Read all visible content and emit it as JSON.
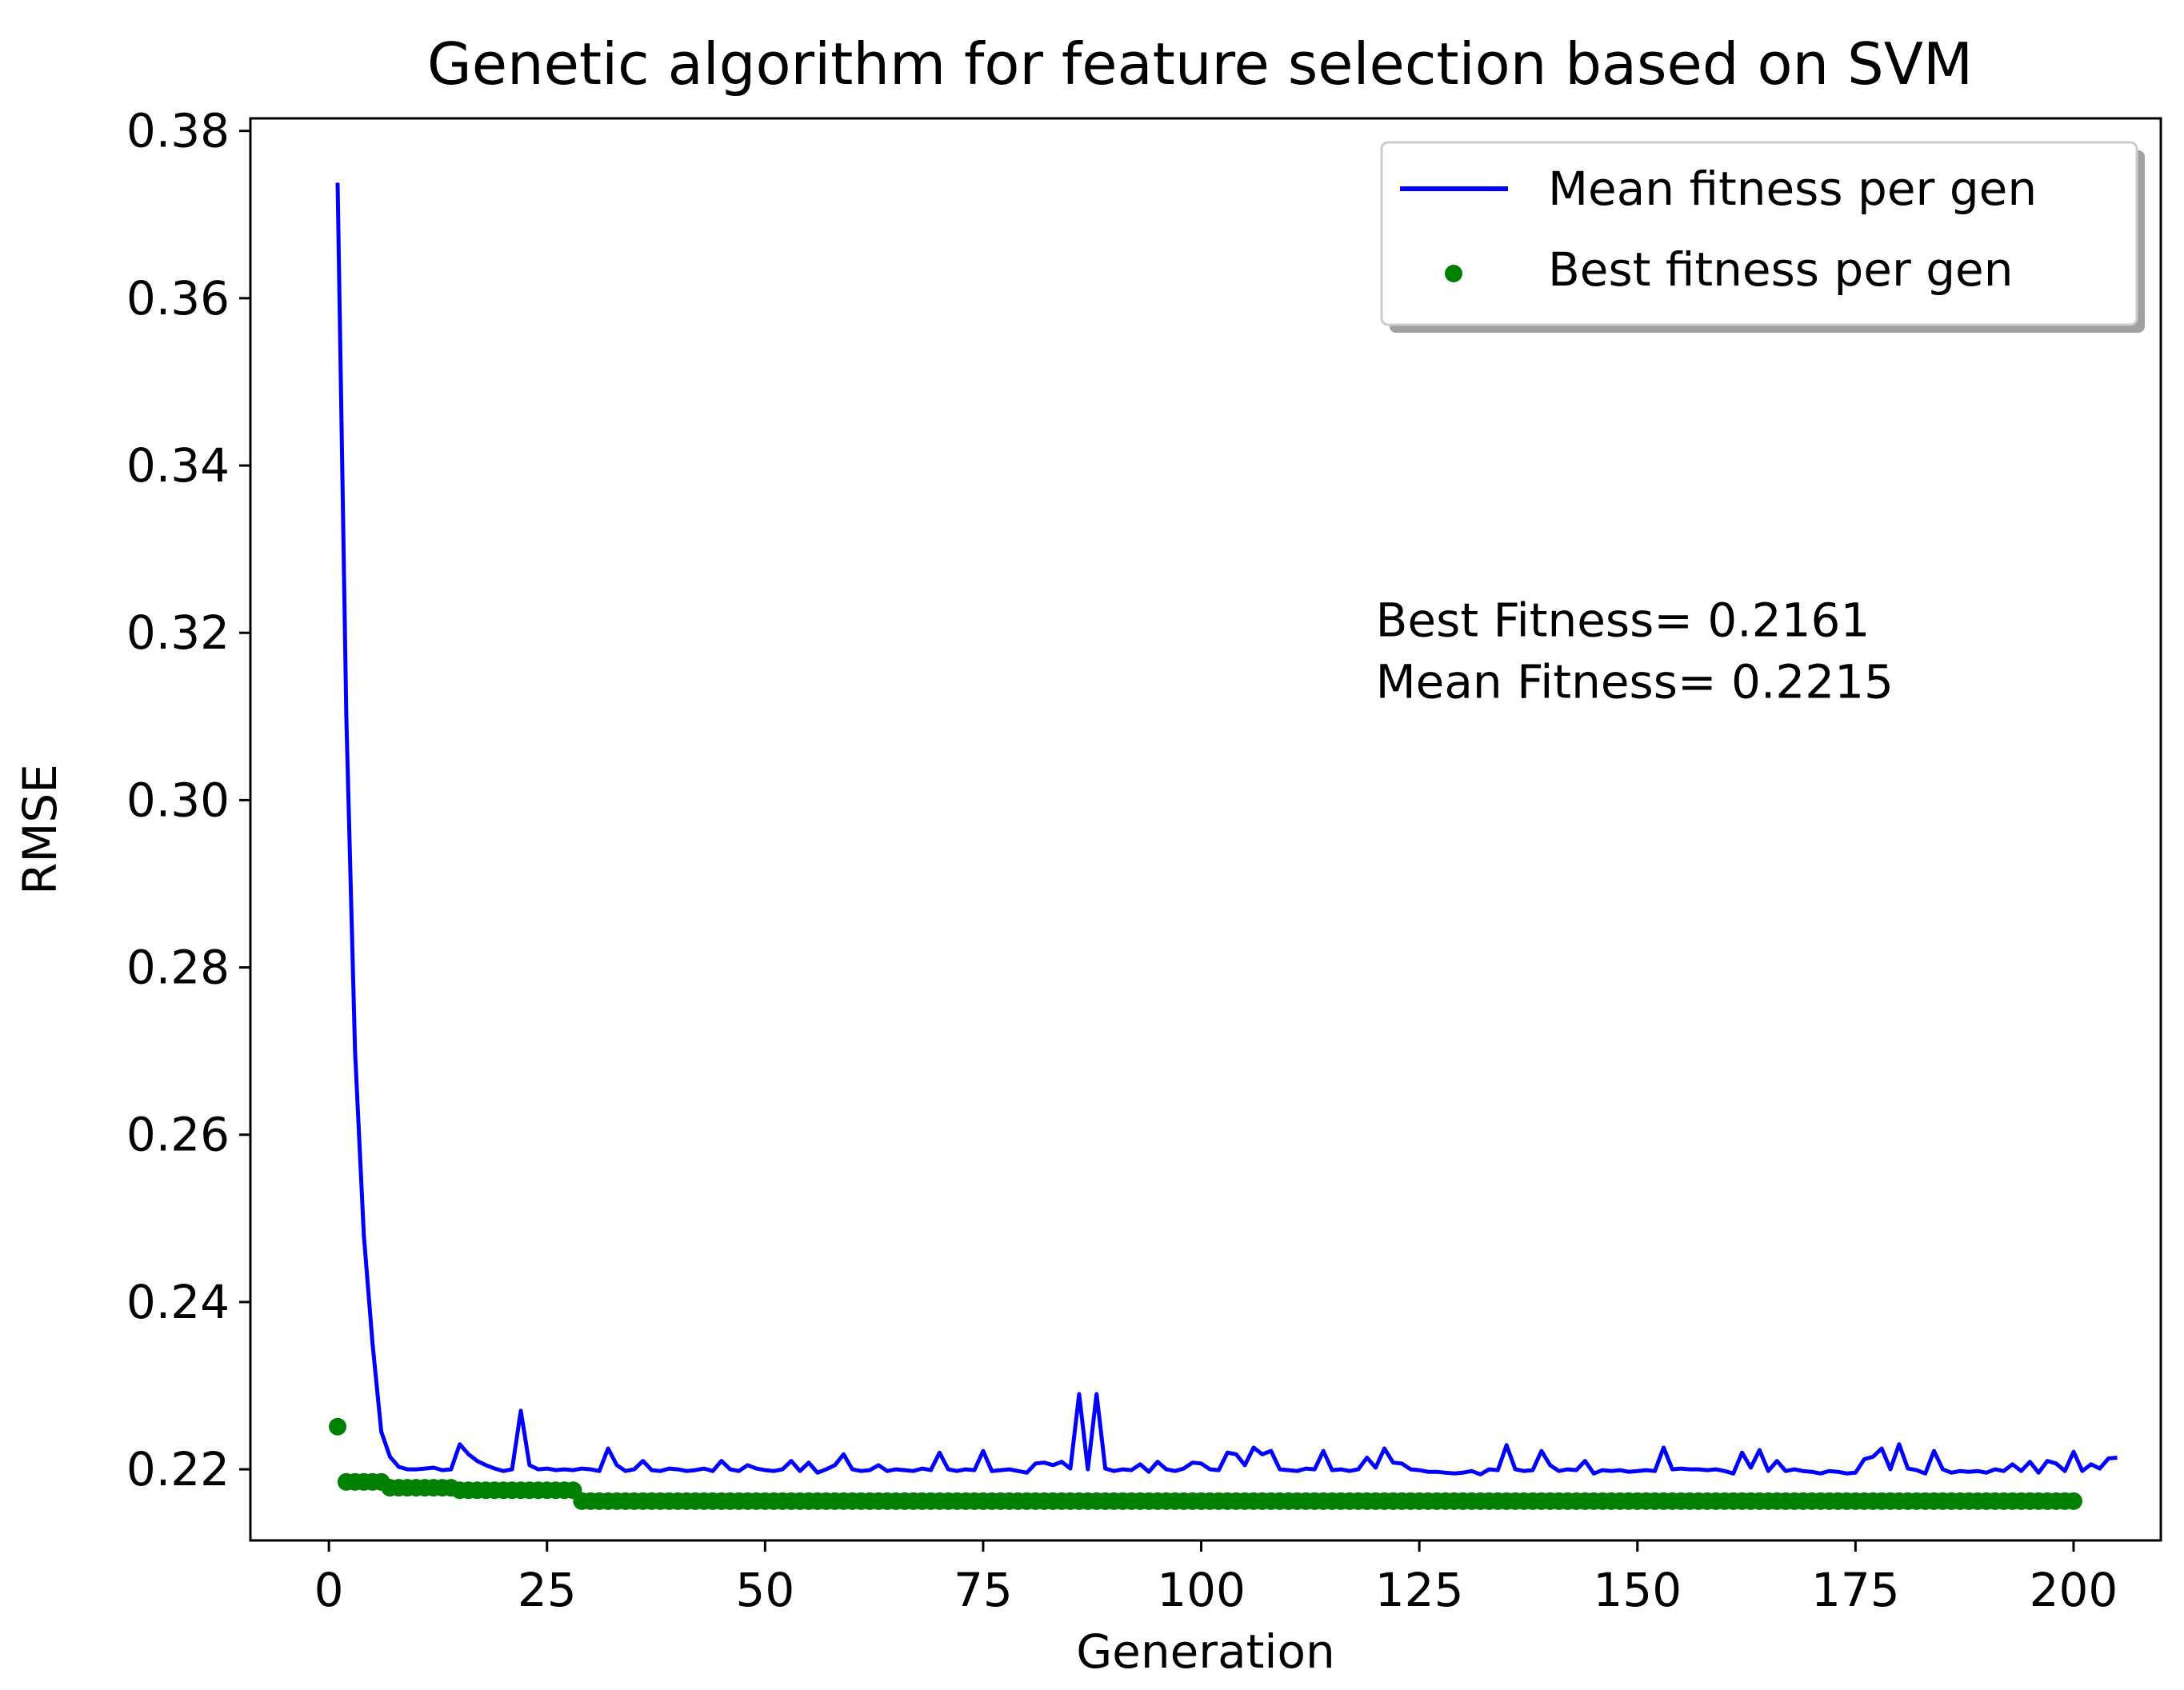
{
  "chart_data": {
    "type": "line",
    "title": "Genetic algorithm for feature selection based on SVM",
    "xlabel": "Generation",
    "ylabel": "RMSE",
    "xlim": [
      -9,
      210
    ],
    "ylim": [
      0.2115,
      0.3815
    ],
    "x_ticks": [
      0,
      25,
      50,
      75,
      100,
      125,
      150,
      175,
      200
    ],
    "y_ticks": [
      0.22,
      0.24,
      0.26,
      0.28,
      0.3,
      0.32,
      0.34,
      0.36,
      0.38
    ],
    "y_tick_labels": [
      "0.22",
      "0.24",
      "0.26",
      "0.28",
      "0.30",
      "0.32",
      "0.34",
      "0.36",
      "0.38"
    ],
    "grid": false,
    "legend_position": "top-right",
    "series": [
      {
        "name": "Mean fitness per gen",
        "style": "line",
        "color": "#0000ff",
        "x_start": 1,
        "x_step": 1,
        "values": [
          0.3738,
          0.31,
          0.27,
          0.248,
          0.235,
          0.2245,
          0.2215,
          0.2203,
          0.22,
          0.22,
          0.2201,
          0.2202,
          0.2199,
          0.22,
          0.223,
          0.2218,
          0.221,
          0.2205,
          0.2201,
          0.2198,
          0.22,
          0.227,
          0.2205,
          0.22,
          0.2201,
          0.2199,
          0.22,
          0.2199,
          0.2201,
          0.22,
          0.2198,
          0.2225,
          0.2205,
          0.2198,
          0.22,
          0.221,
          0.2199,
          0.2198,
          0.2201,
          0.22,
          0.2198,
          0.2199,
          0.2201,
          0.2198,
          0.221,
          0.22,
          0.2198,
          0.2205,
          0.2201,
          0.2199,
          0.2198,
          0.22,
          0.221,
          0.2198,
          0.2208,
          0.2196,
          0.22,
          0.2205,
          0.2218,
          0.22,
          0.2198,
          0.2199,
          0.2205,
          0.2198,
          0.22,
          0.2199,
          0.2198,
          0.2201,
          0.2199,
          0.222,
          0.22,
          0.2198,
          0.22,
          0.2199,
          0.2222,
          0.2198,
          0.2199,
          0.22,
          0.2198,
          0.2196,
          0.2207,
          0.2208,
          0.2205,
          0.2209,
          0.2201,
          0.229,
          0.22,
          0.229,
          0.2201,
          0.2198,
          0.22,
          0.2199,
          0.2206,
          0.2197,
          0.2209,
          0.22,
          0.2198,
          0.2201,
          0.2208,
          0.2207,
          0.22,
          0.2199,
          0.222,
          0.2218,
          0.2205,
          0.2226,
          0.2218,
          0.2222,
          0.22,
          0.2199,
          0.2198,
          0.2201,
          0.22,
          0.2222,
          0.2199,
          0.22,
          0.2198,
          0.22,
          0.2214,
          0.2202,
          0.2225,
          0.2208,
          0.2207,
          0.22,
          0.2199,
          0.2197,
          0.2197,
          0.2196,
          0.2195,
          0.2196,
          0.2198,
          0.2194,
          0.22,
          0.2199,
          0.2229,
          0.22,
          0.2198,
          0.2199,
          0.2222,
          0.2205,
          0.2198,
          0.22,
          0.2199,
          0.221,
          0.2195,
          0.2199,
          0.2198,
          0.2199,
          0.2197,
          0.2198,
          0.2199,
          0.2198,
          0.2226,
          0.22,
          0.2201,
          0.22,
          0.22,
          0.2199,
          0.22,
          0.2198,
          0.2195,
          0.222,
          0.2202,
          0.2223,
          0.2198,
          0.221,
          0.2198,
          0.22,
          0.2198,
          0.2197,
          0.2195,
          0.2198,
          0.2197,
          0.2195,
          0.2196,
          0.2212,
          0.2215,
          0.2225,
          0.22,
          0.223,
          0.2201,
          0.2199,
          0.2195,
          0.2222,
          0.22,
          0.2196,
          0.2198,
          0.2197,
          0.2198,
          0.2196,
          0.22,
          0.2198,
          0.2206,
          0.2198,
          0.2209,
          0.2196,
          0.221,
          0.2207,
          0.2198,
          0.2221,
          0.2198,
          0.2206,
          0.2201,
          0.2213,
          0.2214
        ]
      },
      {
        "name": "Best fitness per gen",
        "style": "markers",
        "color": "#008000",
        "x_start": 1,
        "x_step": 1,
        "segments": [
          {
            "from": 1,
            "to": 1,
            "value": 0.2251
          },
          {
            "from": 2,
            "to": 6,
            "value": 0.2185
          },
          {
            "from": 7,
            "to": 14,
            "value": 0.2178
          },
          {
            "from": 15,
            "to": 28,
            "value": 0.2175
          },
          {
            "from": 29,
            "to": 200,
            "value": 0.2162
          }
        ]
      }
    ],
    "annotation": {
      "lines": [
        "Best Fitness= 0.2161",
        "Mean Fitness= 0.2215"
      ],
      "x": 120,
      "y_top": 0.3215
    }
  }
}
